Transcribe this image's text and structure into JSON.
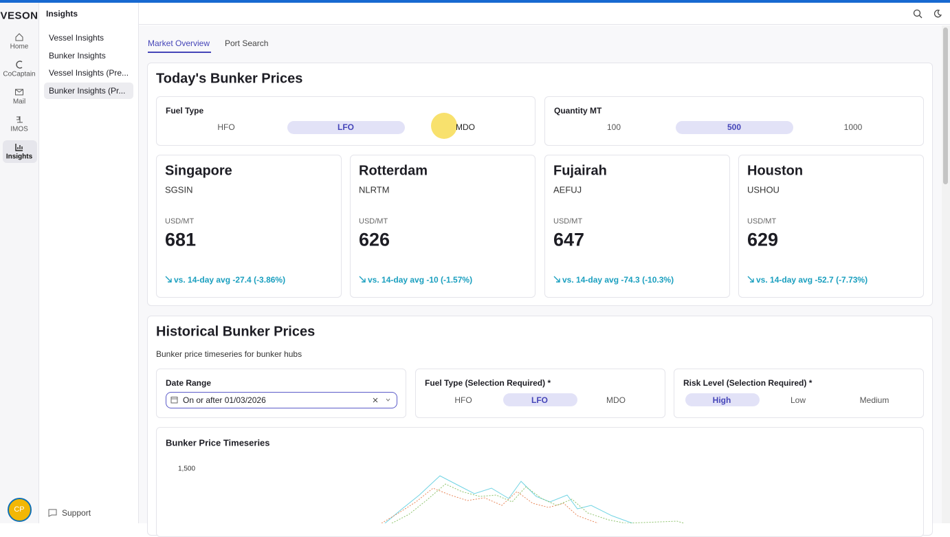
{
  "brand": "VESON",
  "rail": {
    "items": [
      "Home",
      "CoCaptain",
      "Mail",
      "IMOS",
      "Insights"
    ],
    "avatar": "CP"
  },
  "sidebar": {
    "title": "Insights",
    "items": [
      "Vessel Insights",
      "Bunker Insights",
      "Vessel Insights (Pre...",
      "Bunker Insights (Pr..."
    ],
    "support": "Support"
  },
  "tabs": [
    "Market Overview",
    "Port Search"
  ],
  "today": {
    "title": "Today's Bunker Prices",
    "fuel": {
      "label": "Fuel Type",
      "options": [
        "HFO",
        "LFO",
        "MDO"
      ]
    },
    "quantity": {
      "label": "Quantity MT",
      "options": [
        "100",
        "500",
        "1000"
      ]
    },
    "ports": [
      {
        "name": "Singapore",
        "code": "SGSIN",
        "unit": "USD/MT",
        "price": 681,
        "change": "vs. 14-day avg -27.4 (-3.86%)"
      },
      {
        "name": "Rotterdam",
        "code": "NLRTM",
        "unit": "USD/MT",
        "price": 626,
        "change": "vs. 14-day avg -10 (-1.57%)"
      },
      {
        "name": "Fujairah",
        "code": "AEFUJ",
        "unit": "USD/MT",
        "price": 647,
        "change": "vs. 14-day avg -74.3 (-10.3%)"
      },
      {
        "name": "Houston",
        "code": "USHOU",
        "unit": "USD/MT",
        "price": 629,
        "change": "vs. 14-day avg -52.7 (-7.73%)"
      }
    ]
  },
  "historical": {
    "title": "Historical Bunker Prices",
    "subtitle": "Bunker price timeseries for bunker hubs",
    "date_range": {
      "label": "Date Range",
      "value": "On or after 01/03/2026"
    },
    "fuel": {
      "label": "Fuel Type (Selection Required) *",
      "options": [
        "HFO",
        "LFO",
        "MDO"
      ]
    },
    "risk": {
      "label": "Risk Level (Selection Required) *",
      "options": [
        "High",
        "Low",
        "Medium"
      ]
    },
    "chart_title": "Bunker Price Timeseries",
    "ytick": "1,500"
  }
}
